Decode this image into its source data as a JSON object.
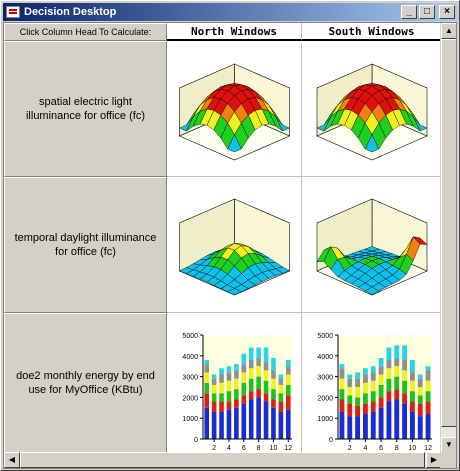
{
  "window": {
    "title": "Decision Desktop",
    "buttons": {
      "minimize": "_",
      "maximize": "□",
      "close": "×"
    }
  },
  "table": {
    "corner_label": "Click Column Head To Calculate:",
    "columns": [
      "North Windows",
      "South Windows"
    ],
    "rows": [
      "spatial electric light illuminance for office (fc)",
      "temporal daylight illuminance for office (fc)",
      "doe2 monthly energy by end use for MyOffice (KBtu)"
    ]
  },
  "chart_data": [
    {
      "type": "bar",
      "title": "",
      "xlabel": "",
      "ylabel": "",
      "ylim": [
        0,
        5000
      ],
      "yticks": [
        "0",
        "1000",
        "2000",
        "3000",
        "4000",
        "5000"
      ],
      "x": [
        1,
        2,
        3,
        4,
        5,
        6,
        7,
        8,
        9,
        10,
        11,
        12
      ],
      "xtick_labels": [
        "2",
        "4",
        "6",
        "8",
        "10",
        "12"
      ],
      "series": [
        {
          "color": "#1a2bd8",
          "values": [
            1500,
            1300,
            1300,
            1400,
            1500,
            1700,
            1900,
            2000,
            1800,
            1500,
            1300,
            1400
          ]
        },
        {
          "color": "#d62020",
          "values": [
            700,
            500,
            500,
            400,
            400,
            400,
            400,
            400,
            400,
            400,
            500,
            700
          ]
        },
        {
          "color": "#1ec21e",
          "values": [
            500,
            400,
            400,
            500,
            500,
            600,
            600,
            600,
            600,
            500,
            400,
            500
          ]
        },
        {
          "color": "#f4f020",
          "values": [
            500,
            400,
            500,
            500,
            500,
            500,
            500,
            500,
            500,
            500,
            400,
            500
          ]
        },
        {
          "color": "#909090",
          "values": [
            400,
            300,
            400,
            400,
            400,
            400,
            400,
            400,
            400,
            400,
            300,
            400
          ]
        },
        {
          "color": "#28d4e8",
          "values": [
            200,
            200,
            300,
            300,
            300,
            500,
            600,
            500,
            700,
            600,
            200,
            300
          ]
        }
      ],
      "grid": false
    },
    {
      "type": "bar",
      "title": "",
      "xlabel": "",
      "ylabel": "",
      "ylim": [
        0,
        5000
      ],
      "yticks": [
        "0",
        "1000",
        "2000",
        "3000",
        "4000",
        "5000"
      ],
      "x": [
        1,
        2,
        3,
        4,
        5,
        6,
        7,
        8,
        9,
        10,
        11,
        12
      ],
      "xtick_labels": [
        "2",
        "4",
        "6",
        "8",
        "10",
        "12"
      ],
      "series": [
        {
          "color": "#1a2bd8",
          "values": [
            1300,
            1100,
            1100,
            1200,
            1300,
            1500,
            1800,
            1900,
            1700,
            1300,
            1100,
            1200
          ]
        },
        {
          "color": "#d62020",
          "values": [
            600,
            600,
            500,
            500,
            500,
            500,
            500,
            500,
            500,
            500,
            600,
            600
          ]
        },
        {
          "color": "#1ec21e",
          "values": [
            500,
            400,
            400,
            500,
            500,
            600,
            600,
            600,
            600,
            500,
            400,
            500
          ]
        },
        {
          "color": "#f4f020",
          "values": [
            500,
            400,
            500,
            500,
            500,
            500,
            500,
            500,
            500,
            500,
            400,
            500
          ]
        },
        {
          "color": "#909090",
          "values": [
            500,
            400,
            400,
            400,
            400,
            400,
            400,
            400,
            500,
            400,
            400,
            500
          ]
        },
        {
          "color": "#28d4e8",
          "values": [
            200,
            200,
            300,
            300,
            300,
            400,
            600,
            600,
            700,
            600,
            200,
            200
          ]
        }
      ],
      "grid": false
    }
  ]
}
